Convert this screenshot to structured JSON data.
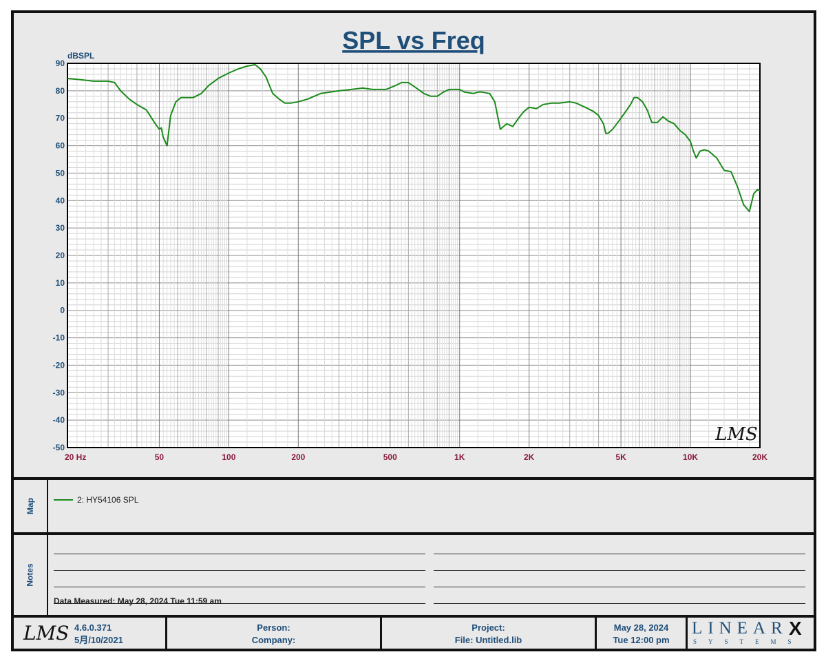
{
  "chart_data": {
    "type": "line",
    "title": "SPL vs Freq",
    "ylabel": "dBSPL",
    "xscale": "log",
    "xlim": [
      20,
      20000
    ],
    "ylim": [
      -50,
      90
    ],
    "grid": true,
    "yticks": [
      "90",
      "80",
      "70",
      "60",
      "50",
      "40",
      "30",
      "20",
      "10",
      "0",
      "-10",
      "-20",
      "-30",
      "-40",
      "-50"
    ],
    "xticks": [
      {
        "value": 20,
        "label": "20  Hz"
      },
      {
        "value": 50,
        "label": "50"
      },
      {
        "value": 100,
        "label": "100"
      },
      {
        "value": 200,
        "label": "200"
      },
      {
        "value": 500,
        "label": "500"
      },
      {
        "value": 1000,
        "label": "1K"
      },
      {
        "value": 2000,
        "label": "2K"
      },
      {
        "value": 5000,
        "label": "5K"
      },
      {
        "value": 10000,
        "label": "10K"
      },
      {
        "value": 20000,
        "label": "20K"
      }
    ],
    "series": [
      {
        "name": "2: HY54106  SPL",
        "color": "#1a8a1a",
        "points": [
          [
            20,
            84.5
          ],
          [
            23,
            84
          ],
          [
            26,
            83.5
          ],
          [
            30,
            83.5
          ],
          [
            32,
            83
          ],
          [
            34,
            80
          ],
          [
            37,
            77
          ],
          [
            40,
            75
          ],
          [
            44,
            73
          ],
          [
            48,
            68
          ],
          [
            50,
            66
          ],
          [
            51,
            66.5
          ],
          [
            52,
            63
          ],
          [
            54,
            60
          ],
          [
            56,
            71
          ],
          [
            59,
            76
          ],
          [
            62,
            77.5
          ],
          [
            66,
            77.5
          ],
          [
            70,
            77.5
          ],
          [
            76,
            79
          ],
          [
            82,
            82
          ],
          [
            90,
            84.5
          ],
          [
            100,
            86.5
          ],
          [
            110,
            88
          ],
          [
            120,
            89
          ],
          [
            130,
            89.5
          ],
          [
            137,
            88
          ],
          [
            145,
            85
          ],
          [
            155,
            79
          ],
          [
            165,
            77
          ],
          [
            175,
            75.5
          ],
          [
            185,
            75.5
          ],
          [
            200,
            76
          ],
          [
            220,
            77
          ],
          [
            250,
            79
          ],
          [
            300,
            80
          ],
          [
            340,
            80.5
          ],
          [
            380,
            81
          ],
          [
            420,
            80.5
          ],
          [
            480,
            80.5
          ],
          [
            530,
            82
          ],
          [
            560,
            83
          ],
          [
            600,
            83
          ],
          [
            650,
            81
          ],
          [
            700,
            79
          ],
          [
            750,
            78
          ],
          [
            800,
            78
          ],
          [
            850,
            79.5
          ],
          [
            900,
            80.5
          ],
          [
            1000,
            80.5
          ],
          [
            1050,
            79.5
          ],
          [
            1150,
            79
          ],
          [
            1200,
            79.5
          ],
          [
            1250,
            79.5
          ],
          [
            1350,
            79
          ],
          [
            1420,
            76
          ],
          [
            1500,
            66
          ],
          [
            1600,
            68
          ],
          [
            1700,
            67
          ],
          [
            1800,
            70
          ],
          [
            1900,
            72.5
          ],
          [
            2000,
            74
          ],
          [
            2150,
            73.5
          ],
          [
            2300,
            75
          ],
          [
            2500,
            75.5
          ],
          [
            2700,
            75.5
          ],
          [
            3000,
            76
          ],
          [
            3200,
            75.5
          ],
          [
            3500,
            74
          ],
          [
            3800,
            72.5
          ],
          [
            4000,
            71
          ],
          [
            4200,
            68
          ],
          [
            4300,
            64.5
          ],
          [
            4400,
            64.5
          ],
          [
            4600,
            66
          ],
          [
            4900,
            69
          ],
          [
            5200,
            72
          ],
          [
            5500,
            75
          ],
          [
            5700,
            77.5
          ],
          [
            5900,
            77.5
          ],
          [
            6200,
            76
          ],
          [
            6500,
            73
          ],
          [
            6800,
            68.5
          ],
          [
            7200,
            68.5
          ],
          [
            7600,
            70.5
          ],
          [
            8000,
            69
          ],
          [
            8500,
            68
          ],
          [
            9000,
            65.5
          ],
          [
            9500,
            64
          ],
          [
            10000,
            61.5
          ],
          [
            10300,
            58
          ],
          [
            10600,
            55.5
          ],
          [
            11000,
            58
          ],
          [
            11500,
            58.5
          ],
          [
            12000,
            58
          ],
          [
            13000,
            55.5
          ],
          [
            14000,
            51
          ],
          [
            15000,
            50.5
          ],
          [
            16000,
            45
          ],
          [
            17000,
            38.5
          ],
          [
            18000,
            36
          ],
          [
            18800,
            42.5
          ],
          [
            19500,
            44
          ],
          [
            20000,
            43.5
          ]
        ]
      }
    ]
  },
  "map": {
    "label": "Map",
    "legend": "2: HY54106  SPL"
  },
  "notes": {
    "label": "Notes",
    "measured": "Data Measured: May 28, 2024  Tue 11:59 am"
  },
  "footer": {
    "lms_logo": "LMS",
    "version": "4.6.0.371",
    "version_date": "5月/10/2021",
    "person_label": "Person:",
    "company_label": "Company:",
    "project_label": "Project:",
    "file_label": "File: Untitled.lib",
    "date": "May 28, 2024",
    "time": "Tue 12:00 pm",
    "brand_main": "LINEAR",
    "brand_x": "X",
    "brand_sub": "SYSTEMS"
  },
  "colors": {
    "axis_label": "#1f4e79",
    "x_tick": "#8b1a3b",
    "curve": "#1a8a1a"
  }
}
